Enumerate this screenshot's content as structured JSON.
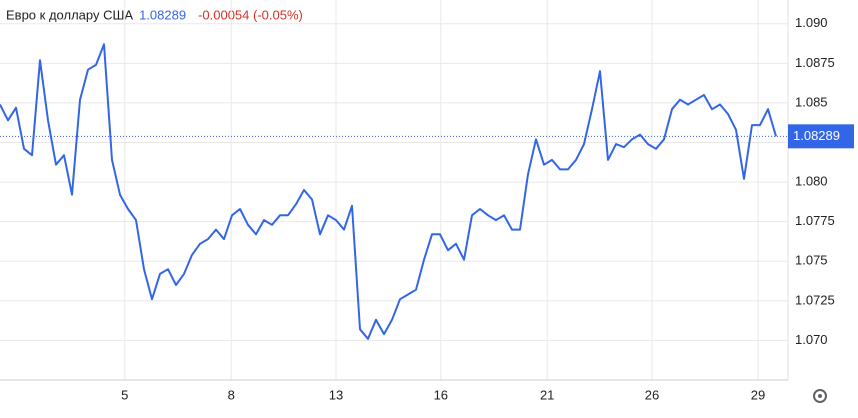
{
  "chart_data": {
    "type": "line",
    "title": "Евро к доллару США",
    "last_price": "1.08289",
    "change": "-0.00054 (-0.05%)",
    "last_value": 1.08289,
    "xlim": [
      0,
      98.5
    ],
    "xticks": [
      {
        "value": 15.6,
        "label": "5"
      },
      {
        "value": 28.9,
        "label": "8"
      },
      {
        "value": 42,
        "label": "13"
      },
      {
        "value": 55.1,
        "label": "16"
      },
      {
        "value": 68.4,
        "label": "21"
      },
      {
        "value": 81.5,
        "label": "26"
      },
      {
        "value": 94.75,
        "label": "29"
      }
    ],
    "ylim": [
      1.0675,
      1.0915
    ],
    "yticks": [
      {
        "value": 1.07,
        "label": "1.070"
      },
      1.0725,
      1.075,
      1.0775,
      {
        "value": 1.08,
        "label": "1.080"
      },
      1.0825,
      1.085,
      1.0875,
      {
        "value": 1.09,
        "label": "1.090"
      }
    ],
    "grid": true,
    "color": "#3366e6",
    "values": [
      1.0849,
      1.0839,
      1.0847,
      1.0821,
      1.0817,
      1.0877,
      1.0839,
      1.0811,
      1.0817,
      1.0792,
      1.0852,
      1.0871,
      1.0874,
      1.0887,
      1.0814,
      1.0792,
      1.0783,
      1.0776,
      1.0745,
      1.0726,
      1.0742,
      1.0745,
      1.0735,
      1.0742,
      1.0754,
      1.0761,
      1.0764,
      1.077,
      1.0764,
      1.0779,
      1.0783,
      1.0773,
      1.0767,
      1.0776,
      1.0773,
      1.0779,
      1.0779,
      1.0786,
      1.0795,
      1.0789,
      1.0767,
      1.0779,
      1.0776,
      1.077,
      1.0785,
      1.0707,
      1.0701,
      1.0713,
      1.0704,
      1.0713,
      1.0726,
      1.0729,
      1.0732,
      1.0751,
      1.0767,
      1.0767,
      1.0757,
      1.0761,
      1.0751,
      1.0779,
      1.0783,
      1.0779,
      1.0776,
      1.0779,
      1.077,
      1.077,
      1.0805,
      1.0827,
      1.0811,
      1.0814,
      1.0808,
      1.0808,
      1.0814,
      1.0824,
      1.0846,
      1.087,
      1.0814,
      1.0824,
      1.0822,
      1.0827,
      1.083,
      1.0824,
      1.0821,
      1.0827,
      1.0846,
      1.0852,
      1.0849,
      1.0852,
      1.0855,
      1.0846,
      1.0849,
      1.0843,
      1.0833,
      1.0802,
      1.0836,
      1.0836,
      1.0846,
      1.08289
    ]
  }
}
